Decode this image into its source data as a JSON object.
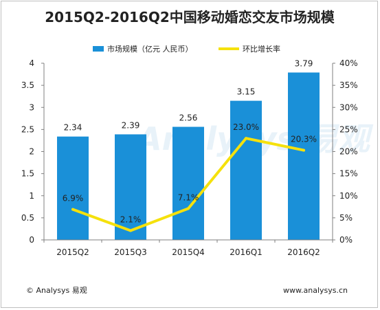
{
  "chart_data": {
    "type": "bar",
    "title": "2015Q2-2016Q2中国移动婚恋交友市场规模",
    "categories": [
      "2015Q2",
      "2015Q3",
      "2015Q4",
      "2016Q1",
      "2016Q2"
    ],
    "series": [
      {
        "name": "市场规模（亿元 人民币）",
        "type": "bar",
        "axis": "left",
        "values": [
          2.34,
          2.39,
          2.56,
          3.15,
          3.79
        ],
        "labels": [
          "2.34",
          "2.39",
          "2.56",
          "3.15",
          "3.79"
        ],
        "color": "#1a90d8"
      },
      {
        "name": "环比增长率",
        "type": "line",
        "axis": "right",
        "values": [
          6.9,
          2.1,
          7.1,
          23.0,
          20.3
        ],
        "labels": [
          "6.9%",
          "2.1%",
          "7.1%",
          "23.0%",
          "20.3%"
        ],
        "color": "#f5e10c"
      }
    ],
    "y_left": {
      "ylim": [
        0,
        4
      ],
      "ticks": [
        "0",
        "0.5",
        "1",
        "1.5",
        "2",
        "2.5",
        "3",
        "3.5",
        "4"
      ]
    },
    "y_right": {
      "ylim": [
        0,
        40
      ],
      "ticks": [
        "0%",
        "5%",
        "10%",
        "15%",
        "20%",
        "25%",
        "30%",
        "35%",
        "40%"
      ]
    },
    "legend_position": "top",
    "grid": false
  },
  "footer": {
    "left": "© Analysys 易观",
    "right": "www.analysys.cn"
  }
}
